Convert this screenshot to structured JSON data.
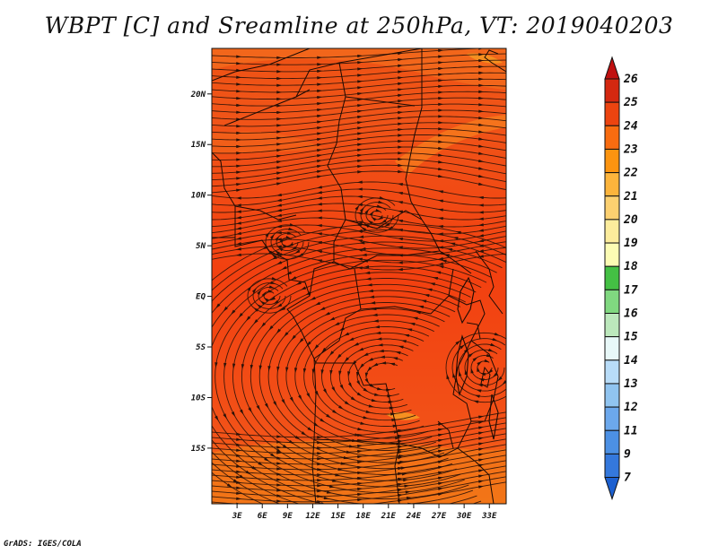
{
  "title": "WBPT [C] and Sreamline at 250hPa, VT: 2019040203",
  "credit": "GrADS: IGES/COLA",
  "map": {
    "lat_ticks": [
      "20N",
      "15N",
      "10N",
      "5N",
      "EQ",
      "5S",
      "10S",
      "15S"
    ],
    "lon_ticks": [
      "3E",
      "6E",
      "9E",
      "12E",
      "15E",
      "18E",
      "21E",
      "24E",
      "27E",
      "30E",
      "33E"
    ],
    "lat_range": [
      -20.5,
      24.5
    ],
    "lon_range": [
      0,
      35
    ]
  },
  "colorbar": {
    "levels": [
      "26",
      "25",
      "24",
      "23",
      "22",
      "21",
      "20",
      "19",
      "18",
      "17",
      "16",
      "15",
      "14",
      "13",
      "12",
      "11",
      "9",
      "7"
    ],
    "colors": [
      "#c01010",
      "#d42810",
      "#ec4410",
      "#f86c10",
      "#fc9410",
      "#fcb43c",
      "#fcd070",
      "#fcec9c",
      "#fcfcb4",
      "#44c044",
      "#80d880",
      "#bce8bc",
      "#e8f8f8",
      "#b8dcf8",
      "#90c4f0",
      "#6ca8ec",
      "#4c90e4",
      "#3478dc",
      "#1c60d0"
    ]
  }
}
